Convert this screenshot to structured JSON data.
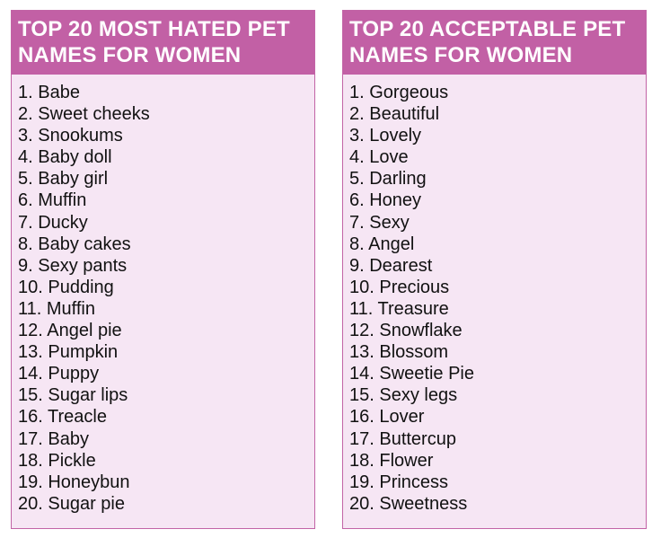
{
  "left_card": {
    "title": "TOP 20 MOST HATED PET\nNAMES FOR WOMEN",
    "items": [
      "1. Babe",
      "2. Sweet cheeks",
      "3. Snookums",
      "4. Baby doll",
      "5. Baby girl",
      "6. Muffin",
      "7. Ducky",
      "8. Baby cakes",
      "9. Sexy pants",
      "10. Pudding",
      "11. Muffin",
      "12. Angel pie",
      "13. Pumpkin",
      "14. Puppy",
      "15. Sugar lips",
      "16. Treacle",
      "17. Baby",
      "18. Pickle",
      "19. Honeybun",
      "20. Sugar pie"
    ]
  },
  "right_card": {
    "title": "TOP 20 ACCEPTABLE PET\nNAMES FOR WOMEN",
    "items": [
      "1. Gorgeous",
      "2. Beautiful",
      "3. Lovely",
      "4. Love",
      "5. Darling",
      "6. Honey",
      "7. Sexy",
      "8. Angel",
      "9. Dearest",
      "10. Precious",
      "11. Treasure",
      "12. Snowflake",
      "13. Blossom",
      "14. Sweetie Pie",
      "15. Sexy legs",
      "16. Lover",
      "17. Buttercup",
      "18. Flower",
      "19. Princess",
      "20. Sweetness"
    ]
  },
  "colors": {
    "header_bg": "#c260a5",
    "card_bg": "#f6e6f4",
    "border": "#c264a6",
    "header_text": "#ffffff",
    "body_text": "#111111"
  }
}
